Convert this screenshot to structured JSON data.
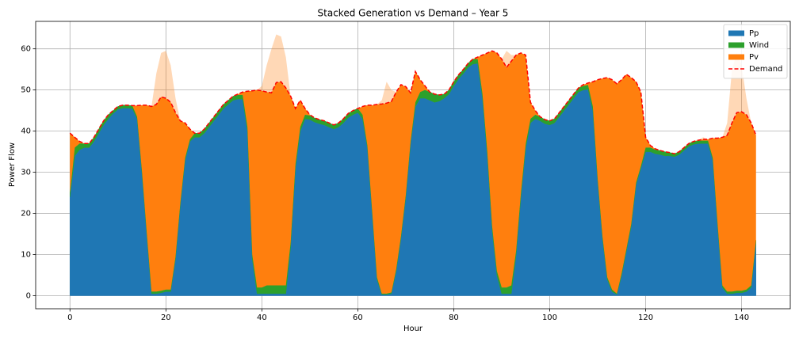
{
  "chart_data": {
    "type": "stacked_area",
    "title": "Stacked Generation vs Demand – Year 5",
    "x_label": "Hour",
    "y_label": "Power Flow",
    "x": [
      0,
      1,
      2,
      3,
      4,
      5,
      6,
      7,
      8,
      9,
      10,
      11,
      12,
      13,
      14,
      15,
      16,
      17,
      18,
      19,
      20,
      21,
      22,
      23,
      24,
      25,
      26,
      27,
      28,
      29,
      30,
      31,
      32,
      33,
      34,
      35,
      36,
      37,
      38,
      39,
      40,
      41,
      42,
      43,
      44,
      45,
      46,
      47,
      48,
      49,
      50,
      51,
      52,
      53,
      54,
      55,
      56,
      57,
      58,
      59,
      60,
      61,
      62,
      63,
      64,
      65,
      66,
      67,
      68,
      69,
      70,
      71,
      72,
      73,
      74,
      75,
      76,
      77,
      78,
      79,
      80,
      81,
      82,
      83,
      84,
      85,
      86,
      87,
      88,
      89,
      90,
      91,
      92,
      93,
      94,
      95,
      96,
      97,
      98,
      99,
      100,
      101,
      102,
      103,
      104,
      105,
      106,
      107,
      108,
      109,
      110,
      111,
      112,
      113,
      114,
      115,
      116,
      117,
      118,
      119,
      120,
      121,
      122,
      123,
      124,
      125,
      126,
      127,
      128,
      129,
      130,
      131,
      132,
      133,
      134,
      135,
      136,
      137,
      138,
      139,
      140,
      141,
      142,
      143
    ],
    "series": [
      {
        "name": "Pp",
        "color": "#1f77b4",
        "type": "area",
        "values": [
          24,
          34,
          35.5,
          36,
          36,
          37.5,
          39.5,
          41.5,
          43,
          44.3,
          45.3,
          45.6,
          45.6,
          45.5,
          43,
          30,
          15,
          0.5,
          0.5,
          0.7,
          1,
          1,
          9,
          22,
          33,
          37.5,
          38.5,
          38.5,
          39.5,
          41,
          42.5,
          44,
          45.5,
          46.5,
          47.5,
          47.8,
          47.8,
          40,
          9,
          0.5,
          0.5,
          0.5,
          0.5,
          0.5,
          0.5,
          0.5,
          12,
          31,
          40,
          43,
          42.8,
          42.2,
          41.8,
          41.5,
          41,
          40.5,
          41,
          42,
          43.3,
          44,
          44.5,
          43,
          36,
          20,
          4,
          0.3,
          0.3,
          0.5,
          6,
          14,
          24,
          37,
          46,
          48,
          48,
          47.5,
          47,
          47.3,
          48,
          49,
          51,
          52.7,
          54,
          55.5,
          56.3,
          56.5,
          48,
          34,
          16,
          5,
          0.5,
          0.5,
          0.5,
          10,
          24,
          36,
          42,
          43,
          42.5,
          41.8,
          41.5,
          42,
          43.5,
          45,
          46.5,
          48,
          49.5,
          50,
          50.2,
          45,
          28,
          14,
          4,
          1,
          0.3,
          5,
          11,
          17,
          27,
          31,
          35,
          35,
          34.5,
          34.3,
          34,
          34,
          33.8,
          34.3,
          35.3,
          36.3,
          36.8,
          37,
          37,
          37,
          33,
          17,
          2,
          0.5,
          0.5,
          0.7,
          0.7,
          1,
          2,
          13
        ]
      },
      {
        "name": "Wind",
        "color": "#2ca02c",
        "type": "area",
        "values": [
          1,
          2,
          1.5,
          1,
          1,
          1,
          1,
          1,
          1,
          0.7,
          0.7,
          0.7,
          0.7,
          0.7,
          0.5,
          0.5,
          0.5,
          0.5,
          0.5,
          0.5,
          0.5,
          0.5,
          0.5,
          0.5,
          0.5,
          0.5,
          1,
          1,
          1,
          1,
          1,
          1,
          1,
          1,
          1,
          1,
          1,
          1,
          1,
          1.5,
          1.5,
          2,
          2,
          2,
          2,
          2,
          1,
          1,
          1,
          1,
          1,
          1,
          1,
          1,
          1,
          1,
          1,
          1,
          1,
          1,
          1,
          1,
          0.5,
          0.5,
          0.5,
          0.2,
          0.2,
          0.3,
          0.5,
          0.5,
          0.5,
          0.5,
          1,
          1.5,
          2,
          2,
          2,
          1.5,
          1,
          1,
          1,
          1,
          1,
          1,
          1.2,
          1,
          1,
          1,
          1,
          1,
          1.5,
          1.5,
          2,
          1,
          1,
          1,
          1,
          1,
          1,
          1,
          1,
          1,
          1,
          1,
          1,
          1,
          1,
          1,
          1,
          1,
          0.5,
          0.5,
          0.5,
          0.5,
          0.2,
          0.5,
          0.5,
          0.5,
          0.5,
          0.5,
          1,
          1,
          1,
          1,
          1,
          0.8,
          0.7,
          0.7,
          0.7,
          0.7,
          0.7,
          0.7,
          0.7,
          0.7,
          0.5,
          0.5,
          0.5,
          0.5,
          0.5,
          0.5,
          0.5,
          0.5,
          0.5,
          0.5
        ]
      },
      {
        "name": "Pv",
        "color": "#ff7f0e",
        "type": "area",
        "values": [
          14.5,
          2.5,
          0.5,
          0,
          0,
          0,
          0,
          0,
          0,
          0,
          0,
          0,
          0,
          0,
          2.7,
          15.8,
          30.8,
          45,
          53,
          57.8,
          58,
          54.5,
          38.5,
          20,
          8.5,
          2.5,
          0,
          0,
          0,
          0,
          0,
          0,
          0,
          0,
          0,
          0.2,
          0.7,
          8.7,
          39.8,
          48,
          49,
          53.5,
          57.5,
          61,
          60.5,
          55.5,
          35.5,
          13.5,
          6.5,
          1.5,
          0.2,
          0,
          0,
          0,
          0,
          0,
          0,
          0,
          0,
          0,
          0,
          2,
          9.8,
          25.8,
          42,
          47,
          51.5,
          49.2,
          43,
          36.8,
          26.3,
          11.8,
          7.5,
          3,
          1,
          0,
          0,
          0,
          0,
          0,
          0,
          0,
          0,
          0,
          0,
          0.5,
          9.5,
          24,
          42.5,
          53,
          55.5,
          57.5,
          56,
          47.5,
          34,
          21.5,
          4,
          1,
          0,
          0,
          0,
          0,
          0,
          0,
          0,
          0,
          0,
          0.3,
          0.5,
          6,
          24,
          38.3,
          48.5,
          51,
          51,
          47,
          42.3,
          35.5,
          24.5,
          18,
          2.5,
          0.5,
          0.2,
          0,
          0,
          0,
          0,
          0,
          0,
          0,
          0,
          0.1,
          0.8,
          0.3,
          4.8,
          20.8,
          36,
          41,
          54,
          57.8,
          54.8,
          46.5,
          39.5,
          25.5
        ]
      },
      {
        "name": "Demand",
        "color": "#ff0000",
        "type": "line",
        "dashed": true,
        "values": [
          39.5,
          38.5,
          37.5,
          37,
          37,
          38.5,
          40.5,
          42.5,
          44,
          45,
          46,
          46.3,
          46.3,
          46.2,
          46.2,
          46.3,
          46.3,
          46,
          46.5,
          48.3,
          48,
          47,
          44.5,
          42.5,
          42,
          40.5,
          39.5,
          39.5,
          40.5,
          42,
          43.5,
          45,
          46.5,
          47.5,
          48.5,
          49,
          49.5,
          49.7,
          49.8,
          50,
          49.8,
          49.5,
          49.3,
          51.8,
          52,
          50.5,
          48.5,
          45.5,
          47.5,
          45.5,
          44,
          43.2,
          42.8,
          42.5,
          42,
          41.5,
          42,
          43,
          44.3,
          45,
          45.5,
          46,
          46.3,
          46.3,
          46.5,
          46.6,
          46.8,
          47.2,
          49.5,
          51.3,
          50.8,
          49.3,
          54.5,
          52.5,
          51,
          49.5,
          49,
          48.8,
          49,
          50,
          52,
          53.7,
          55,
          56.5,
          57.5,
          58,
          58.5,
          59,
          59.5,
          59,
          57.5,
          55.5,
          57,
          58.5,
          59,
          58.5,
          47,
          45,
          43.5,
          42.8,
          42.5,
          43,
          44.5,
          46,
          47.5,
          49,
          50.5,
          51.3,
          51.7,
          52,
          52.5,
          52.8,
          53,
          52.5,
          51.5,
          52.5,
          53.8,
          53,
          52,
          49.5,
          38.5,
          36.5,
          35.7,
          35.3,
          35,
          34.8,
          34.5,
          35,
          36,
          37,
          37.5,
          37.8,
          38,
          38,
          38.3,
          38.3,
          38.5,
          39,
          42,
          44.5,
          44.7,
          44,
          42,
          39
        ]
      }
    ],
    "xlim": [
      -7.15,
      150.15
    ],
    "ylim": [
      -3.175,
      66.675
    ],
    "xticks": [
      0,
      20,
      40,
      60,
      80,
      100,
      120,
      140
    ],
    "yticks": [
      0,
      10,
      20,
      30,
      40,
      50,
      60
    ],
    "grid": true,
    "legend": "upper right"
  }
}
